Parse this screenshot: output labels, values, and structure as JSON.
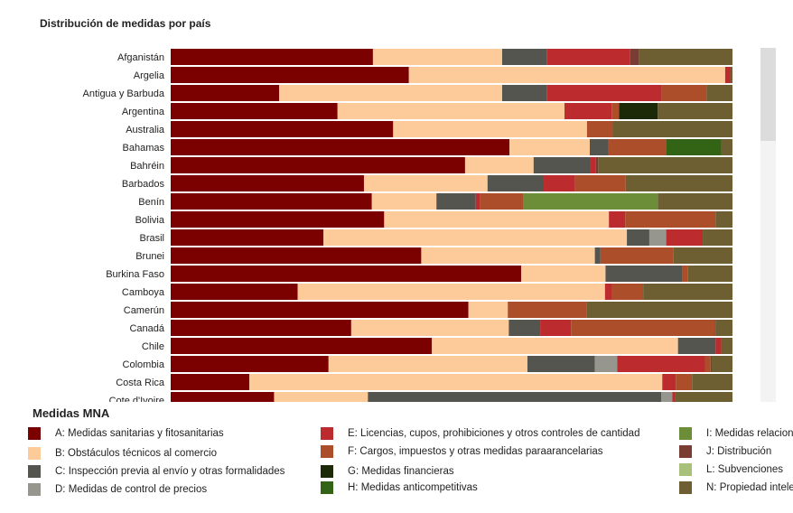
{
  "chart_data": {
    "type": "bar",
    "orientation": "horizontal",
    "stacked": "percent",
    "title": "Distribución de medidas por país",
    "legend_title": "Medidas MNA",
    "categories": [
      "Afganistán",
      "Argelia",
      "Antigua y Barbuda",
      "Argentina",
      "Australia",
      "Bahamas",
      "Bahréin",
      "Barbados",
      "Benín",
      "Bolivia",
      "Brasil",
      "Brunei",
      "Burkina Faso",
      "Camboya",
      "Camerún",
      "Canadá",
      "Chile",
      "Colombia",
      "Costa Rica",
      "Cote d'Ivoire"
    ],
    "series": [
      {
        "name": "A: Medidas sanitarias y fitosanitarias",
        "color": "#7b0000",
        "values": [
          36,
          42.4,
          19.3,
          29.7,
          39.6,
          60.3,
          52.4,
          34.4,
          35.8,
          38,
          27.2,
          44.6,
          62.4,
          22.6,
          53,
          32.2,
          46.5,
          28.1,
          14,
          18.4
        ]
      },
      {
        "name": "B: Obstáculos técnicos al comercio",
        "color": "#fdcb99",
        "values": [
          23,
          56.3,
          39.7,
          40.4,
          34.5,
          14.3,
          12.2,
          22,
          11.5,
          40,
          54,
          30.9,
          15,
          54.7,
          7,
          28.1,
          43.8,
          35.4,
          73.5,
          16.7
        ]
      },
      {
        "name": "C: Inspección previa al envío y otras formalidades",
        "color": "#555550",
        "values": [
          8,
          0,
          8,
          0,
          0,
          3.3,
          10,
          10,
          7,
          0,
          4,
          1,
          13.6,
          0,
          0,
          5.6,
          6.7,
          12,
          0,
          52.2
        ]
      },
      {
        "name": "D: Medidas de control de precios",
        "color": "#96968e",
        "values": [
          0,
          0,
          0,
          0,
          0,
          0,
          0,
          0,
          0,
          0,
          3,
          0,
          0,
          0,
          0,
          0,
          0,
          4,
          0,
          2
        ]
      },
      {
        "name": "E: Licencias, cupos, prohibiciones y otros controles de cantidad",
        "color": "#bc2c2e",
        "values": [
          14.8,
          0.9,
          20.4,
          8.4,
          0,
          0,
          1,
          5.6,
          0.8,
          2.9,
          6.5,
          0,
          0,
          1.3,
          0,
          5.5,
          1,
          15.6,
          2.4,
          0.5
        ]
      },
      {
        "name": "F: Cargos, impuestos y otras medidas paraarancelarias",
        "color": "#ad4e2a",
        "values": [
          0,
          0,
          8,
          1.3,
          4.6,
          10.3,
          0,
          9,
          7.6,
          16.1,
          0,
          13,
          1.1,
          5.5,
          14,
          25.6,
          0,
          1,
          2.9,
          0
        ]
      },
      {
        "name": "G: Medidas financieras",
        "color": "#1c2a07",
        "values": [
          0,
          0,
          0,
          6.9,
          0,
          0,
          0,
          0,
          0,
          0,
          0,
          0,
          0,
          0,
          0,
          0,
          0,
          0,
          0,
          0
        ]
      },
      {
        "name": "H: Medidas anticompetitivas",
        "color": "#336314",
        "values": [
          0,
          0,
          0,
          0,
          0,
          9.8,
          0,
          0,
          0,
          0,
          0,
          0,
          0,
          0,
          0,
          0,
          0,
          0,
          0,
          0
        ]
      },
      {
        "name": "I: Medidas relacionadas con la inversión",
        "color": "#6d8e39",
        "values": [
          0,
          0,
          0,
          0,
          0,
          0,
          0,
          0,
          24,
          0,
          0,
          0,
          0,
          0,
          0,
          0,
          0,
          0,
          0,
          0
        ]
      },
      {
        "name": "J: Distribución",
        "color": "#7a3d34",
        "values": [
          1.6,
          0,
          0,
          0,
          0,
          0,
          0.5,
          0,
          0,
          0,
          0,
          0,
          0,
          0,
          0,
          0.2,
          0,
          0.2,
          0,
          0
        ]
      },
      {
        "name": "L: Subvenciones",
        "color": "#a7c17a",
        "values": [
          0,
          0,
          0,
          0,
          0,
          0,
          0,
          0,
          0,
          0,
          0,
          0,
          0,
          0,
          0,
          0,
          0,
          0,
          0,
          0
        ]
      },
      {
        "name": "N: Propiedad intelectual",
        "color": "#6e5f32",
        "values": [
          16.6,
          0.4,
          4.6,
          13.3,
          21.3,
          2,
          23.9,
          19,
          13.3,
          3,
          5.3,
          10.5,
          7.9,
          15.9,
          26,
          3,
          2,
          3.7,
          7.2,
          10.2
        ]
      }
    ],
    "xlim": [
      0,
      100
    ],
    "grid": false,
    "legend_position": "bottom"
  },
  "legend_labels_visible": [
    "A: Medidas sanitarias y fitosanitarias",
    "B: Obstáculos técnicos al comercio",
    "C: Inspección previa al envío y otras formalidades",
    "D: Medidas de control de precios",
    "E: Licencias, cupos, prohibiciones y otros controles de cantidad",
    "F: Cargos, impuestos y otras medidas paraarancelarias",
    "G: Medidas financieras",
    "H: Medidas anticompetitivas",
    "I: Medidas relaciona",
    "J: Distribución",
    "L: Subvenciones",
    "N: Propiedad intele"
  ]
}
